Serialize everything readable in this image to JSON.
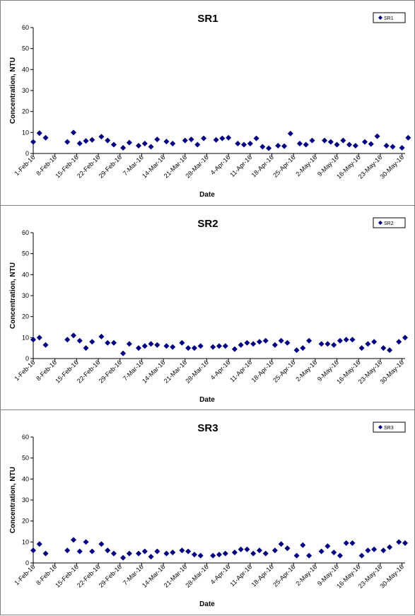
{
  "chart_data": [
    {
      "type": "scatter",
      "title": "SR1",
      "xlabel": "Date",
      "ylabel": "Concentration, NTU",
      "ylim": [
        0,
        60
      ],
      "yticks": [
        "0",
        "10",
        "20",
        "30",
        "40",
        "50",
        "60"
      ],
      "xlim": [
        "2016-02-01",
        "2016-05-31"
      ],
      "xticks": [
        "1-Feb-16",
        "8-Feb-16",
        "15-Feb-16",
        "22-Feb-16",
        "29-Feb-16",
        "7-Mar-16",
        "14-Mar-16",
        "21-Mar-16",
        "28-Mar-16",
        "4-Apr-16",
        "11-Apr-16",
        "18-Apr-16",
        "25-Apr-16",
        "2-May-16",
        "9-May-16",
        "16-May-16",
        "23-May-16",
        "30-May-16"
      ],
      "grid": false,
      "legend": "top-right",
      "marker_color": "#000080",
      "series": [
        {
          "name": "SR1",
          "points": [
            [
              "2016-02-01",
              5.5
            ],
            [
              "2016-02-03",
              9.7
            ],
            [
              "2016-02-05",
              7.5
            ],
            [
              "2016-02-12",
              5.5
            ],
            [
              "2016-02-14",
              10.0
            ],
            [
              "2016-02-16",
              4.8
            ],
            [
              "2016-02-18",
              6.0
            ],
            [
              "2016-02-20",
              6.5
            ],
            [
              "2016-02-23",
              8.0
            ],
            [
              "2016-02-25",
              6.2
            ],
            [
              "2016-02-27",
              4.2
            ],
            [
              "2016-03-01",
              2.7
            ],
            [
              "2016-03-03",
              5.2
            ],
            [
              "2016-03-06",
              3.7
            ],
            [
              "2016-03-08",
              4.7
            ],
            [
              "2016-03-10",
              3.2
            ],
            [
              "2016-03-12",
              6.7
            ],
            [
              "2016-03-15",
              5.7
            ],
            [
              "2016-03-17",
              4.7
            ],
            [
              "2016-03-21",
              6.2
            ],
            [
              "2016-03-23",
              6.7
            ],
            [
              "2016-03-25",
              4.2
            ],
            [
              "2016-03-27",
              7.2
            ],
            [
              "2016-03-31",
              6.5
            ],
            [
              "2016-04-02",
              7.2
            ],
            [
              "2016-04-04",
              7.5
            ],
            [
              "2016-04-07",
              4.7
            ],
            [
              "2016-04-09",
              4.2
            ],
            [
              "2016-04-11",
              4.7
            ],
            [
              "2016-04-13",
              7.2
            ],
            [
              "2016-04-15",
              3.2
            ],
            [
              "2016-04-17",
              2.5
            ],
            [
              "2016-04-20",
              3.7
            ],
            [
              "2016-04-22",
              3.5
            ],
            [
              "2016-04-24",
              9.5
            ],
            [
              "2016-04-27",
              4.7
            ],
            [
              "2016-04-29",
              4.2
            ],
            [
              "2016-05-01",
              6.2
            ],
            [
              "2016-05-05",
              6.2
            ],
            [
              "2016-05-07",
              5.5
            ],
            [
              "2016-05-09",
              4.2
            ],
            [
              "2016-05-11",
              6.2
            ],
            [
              "2016-05-13",
              4.2
            ],
            [
              "2016-05-15",
              3.7
            ],
            [
              "2016-05-18",
              5.5
            ],
            [
              "2016-05-20",
              4.5
            ],
            [
              "2016-05-22",
              8.2
            ],
            [
              "2016-05-25",
              3.7
            ],
            [
              "2016-05-27",
              3.2
            ],
            [
              "2016-05-30",
              2.7
            ],
            [
              "2016-06-01",
              7.5
            ]
          ]
        }
      ]
    },
    {
      "type": "scatter",
      "title": "SR2",
      "xlabel": "Date",
      "ylabel": "Concentration, NTU",
      "ylim": [
        0,
        60
      ],
      "yticks": [
        "0",
        "10",
        "20",
        "30",
        "40",
        "50",
        "60"
      ],
      "xlim": [
        "2016-02-01",
        "2016-05-31"
      ],
      "xticks": [
        "1-Feb-16",
        "8-Feb-16",
        "15-Feb-16",
        "22-Feb-16",
        "29-Feb-16",
        "7-Mar-16",
        "14-Mar-16",
        "21-Mar-16",
        "28-Mar-16",
        "4-Apr-16",
        "11-Apr-16",
        "18-Apr-16",
        "25-Apr-16",
        "2-May-16",
        "9-May-16",
        "16-May-16",
        "23-May-16",
        "30-May-16"
      ],
      "grid": false,
      "legend": "top-right",
      "marker_color": "#000080",
      "series": [
        {
          "name": "SR2",
          "points": [
            [
              "2016-02-01",
              9.0
            ],
            [
              "2016-02-03",
              10.0
            ],
            [
              "2016-02-05",
              6.5
            ],
            [
              "2016-02-12",
              9.0
            ],
            [
              "2016-02-14",
              11.0
            ],
            [
              "2016-02-16",
              8.5
            ],
            [
              "2016-02-18",
              5.0
            ],
            [
              "2016-02-20",
              8.0
            ],
            [
              "2016-02-23",
              10.5
            ],
            [
              "2016-02-25",
              7.5
            ],
            [
              "2016-02-27",
              7.5
            ],
            [
              "2016-03-01",
              2.5
            ],
            [
              "2016-03-03",
              7.0
            ],
            [
              "2016-03-06",
              5.0
            ],
            [
              "2016-03-08",
              6.0
            ],
            [
              "2016-03-10",
              7.0
            ],
            [
              "2016-03-12",
              6.5
            ],
            [
              "2016-03-15",
              6.0
            ],
            [
              "2016-03-17",
              5.5
            ],
            [
              "2016-03-20",
              7.5
            ],
            [
              "2016-03-22",
              5.0
            ],
            [
              "2016-03-24",
              5.0
            ],
            [
              "2016-03-26",
              6.0
            ],
            [
              "2016-03-30",
              5.5
            ],
            [
              "2016-04-01",
              6.0
            ],
            [
              "2016-04-03",
              6.0
            ],
            [
              "2016-04-06",
              4.5
            ],
            [
              "2016-04-08",
              6.5
            ],
            [
              "2016-04-10",
              7.5
            ],
            [
              "2016-04-12",
              7.0
            ],
            [
              "2016-04-14",
              8.0
            ],
            [
              "2016-04-16",
              8.5
            ],
            [
              "2016-04-19",
              6.5
            ],
            [
              "2016-04-21",
              8.5
            ],
            [
              "2016-04-23",
              7.5
            ],
            [
              "2016-04-26",
              4.0
            ],
            [
              "2016-04-28",
              5.0
            ],
            [
              "2016-04-30",
              8.5
            ],
            [
              "2016-05-04",
              7.0
            ],
            [
              "2016-05-06",
              7.0
            ],
            [
              "2016-05-08",
              6.5
            ],
            [
              "2016-05-10",
              8.5
            ],
            [
              "2016-05-12",
              9.0
            ],
            [
              "2016-05-14",
              9.0
            ],
            [
              "2016-05-17",
              5.0
            ],
            [
              "2016-05-19",
              7.0
            ],
            [
              "2016-05-21",
              8.0
            ],
            [
              "2016-05-24",
              5.0
            ],
            [
              "2016-05-26",
              4.0
            ],
            [
              "2016-05-29",
              8.0
            ],
            [
              "2016-05-31",
              10.0
            ]
          ]
        }
      ]
    },
    {
      "type": "scatter",
      "title": "SR3",
      "xlabel": "Date",
      "ylabel": "Concentration, NTU",
      "ylim": [
        0,
        60
      ],
      "yticks": [
        "0",
        "10",
        "20",
        "30",
        "40",
        "50",
        "60"
      ],
      "xlim": [
        "2016-02-01",
        "2016-05-31"
      ],
      "xticks": [
        "1-Feb-16",
        "8-Feb-16",
        "15-Feb-16",
        "22-Feb-16",
        "29-Feb-16",
        "7-Mar-16",
        "14-Mar-16",
        "21-Mar-16",
        "28-Mar-16",
        "4-Apr-16",
        "11-Apr-16",
        "18-Apr-16",
        "25-Apr-16",
        "2-May-16",
        "9-May-16",
        "16-May-16",
        "23-May-16",
        "30-May-16"
      ],
      "grid": false,
      "legend": "top-right",
      "marker_color": "#000080",
      "series": [
        {
          "name": "SR3",
          "points": [
            [
              "2016-02-01",
              6.0
            ],
            [
              "2016-02-03",
              9.0
            ],
            [
              "2016-02-05",
              4.5
            ],
            [
              "2016-02-12",
              6.0
            ],
            [
              "2016-02-14",
              11.0
            ],
            [
              "2016-02-16",
              5.5
            ],
            [
              "2016-02-18",
              10.0
            ],
            [
              "2016-02-20",
              5.5
            ],
            [
              "2016-02-23",
              9.0
            ],
            [
              "2016-02-25",
              6.0
            ],
            [
              "2016-02-27",
              4.5
            ],
            [
              "2016-03-01",
              2.5
            ],
            [
              "2016-03-03",
              4.5
            ],
            [
              "2016-03-06",
              4.5
            ],
            [
              "2016-03-08",
              5.5
            ],
            [
              "2016-03-10",
              3.0
            ],
            [
              "2016-03-12",
              5.5
            ],
            [
              "2016-03-15",
              4.5
            ],
            [
              "2016-03-17",
              5.0
            ],
            [
              "2016-03-20",
              6.0
            ],
            [
              "2016-03-22",
              5.5
            ],
            [
              "2016-03-24",
              4.0
            ],
            [
              "2016-03-26",
              3.5
            ],
            [
              "2016-03-30",
              3.5
            ],
            [
              "2016-04-01",
              4.0
            ],
            [
              "2016-04-03",
              4.5
            ],
            [
              "2016-04-06",
              5.0
            ],
            [
              "2016-04-08",
              6.5
            ],
            [
              "2016-04-10",
              6.5
            ],
            [
              "2016-04-12",
              4.5
            ],
            [
              "2016-04-14",
              6.0
            ],
            [
              "2016-04-16",
              4.5
            ],
            [
              "2016-04-19",
              6.0
            ],
            [
              "2016-04-21",
              9.0
            ],
            [
              "2016-04-23",
              7.0
            ],
            [
              "2016-04-26",
              3.5
            ],
            [
              "2016-04-28",
              8.5
            ],
            [
              "2016-04-30",
              3.5
            ],
            [
              "2016-05-04",
              5.5
            ],
            [
              "2016-05-06",
              8.0
            ],
            [
              "2016-05-08",
              5.0
            ],
            [
              "2016-05-10",
              3.5
            ],
            [
              "2016-05-12",
              9.5
            ],
            [
              "2016-05-14",
              9.5
            ],
            [
              "2016-05-17",
              3.5
            ],
            [
              "2016-05-19",
              6.0
            ],
            [
              "2016-05-21",
              6.5
            ],
            [
              "2016-05-24",
              6.0
            ],
            [
              "2016-05-26",
              7.5
            ],
            [
              "2016-05-29",
              10.0
            ],
            [
              "2016-05-31",
              9.5
            ]
          ]
        }
      ]
    }
  ]
}
